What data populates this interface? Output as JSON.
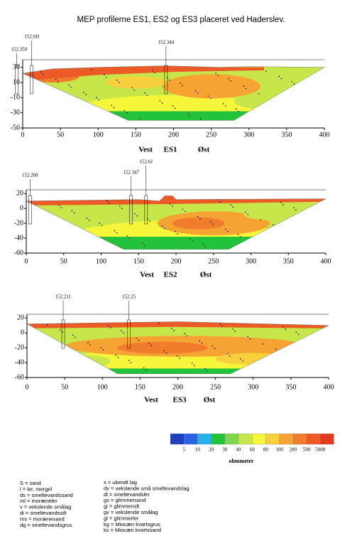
{
  "title": "MEP profilerne ES1, ES2 og ES3 placeret ved Haderslev.",
  "profiles": [
    {
      "labels": [
        "Vest",
        "ES1",
        "Øst"
      ],
      "xlim": [
        0,
        400
      ],
      "ylim": [
        -50,
        40
      ],
      "xticks": [
        0,
        50,
        100,
        150,
        200,
        250,
        300,
        350,
        400
      ],
      "yticks": [
        30,
        10,
        -10,
        -30,
        -50
      ],
      "boreholes": [
        "152.6H",
        "152.350",
        "152.344"
      ]
    },
    {
      "labels": [
        "Vest",
        "ES2",
        "Øst"
      ],
      "xlim": [
        0,
        400
      ],
      "ylim": [
        -60,
        25
      ],
      "xticks": [
        0,
        50,
        100,
        150,
        200,
        250,
        300,
        350,
        400
      ],
      "yticks": [
        20,
        0,
        -20,
        -40,
        -60
      ],
      "boreholes": [
        "152.268",
        "152.347",
        "152.6J"
      ]
    },
    {
      "labels": [
        "Vest",
        "ES3",
        "Øst"
      ],
      "xlim": [
        0,
        400
      ],
      "ylim": [
        -60,
        25
      ],
      "xticks": [
        0,
        50,
        100,
        150,
        200,
        250,
        300,
        350,
        400
      ],
      "yticks": [
        20,
        0,
        -20,
        -40,
        -60
      ],
      "boreholes": [
        "152.211",
        "152.25"
      ]
    }
  ],
  "colorbar": {
    "colors": [
      "#1f3fbf",
      "#2a62e0",
      "#27b3ea",
      "#22c23a",
      "#7fd64a",
      "#c7e64a",
      "#f5f53a",
      "#f8cf3c",
      "#f5a434",
      "#f07c2c",
      "#ec5a26",
      "#e23a1e"
    ],
    "labels": [
      5,
      10,
      20,
      30,
      40,
      60,
      80,
      100,
      200,
      500,
      5000
    ],
    "unit": "ohmmeter"
  },
  "legend": {
    "left": [
      "S = sand",
      "l = ler, mergel",
      "ds = smeltevandssand",
      "ml = moræneler",
      "v = vekslende smålag",
      "di = smeltevandssilt",
      "ms = morænesand",
      "dg = smeltevandsgrus"
    ],
    "right": [
      "x = ukendt lag",
      "dv = vekslende små smeltevandslag",
      "dl = smeltevandsler",
      "gs = glimmersand",
      "gi = glimmersilt",
      "gv = vekslende smålag",
      "gl = glimmerler",
      "kg = Miocæn kvartsgrus",
      "ks = Miocæn kvartssand"
    ]
  }
}
